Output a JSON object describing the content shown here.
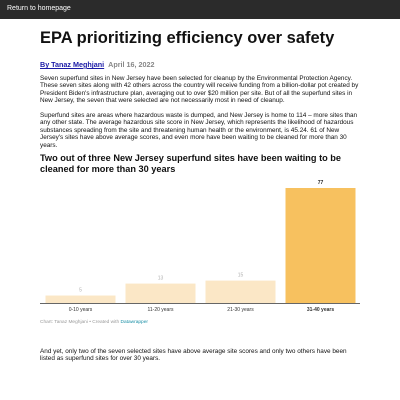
{
  "nav": {
    "home_link": "Return to homepage"
  },
  "article": {
    "title": "EPA prioritizing efficiency over safety",
    "author": "By Tanaz Meghjani",
    "date": "April 16, 2022",
    "paragraphs": [
      "Seven superfund sites in New Jersey have been selected for cleanup by the Environmental Protection Agency. These seven sites along with 42 others across the country will receive funding from a billion-dollar pot created by President Biden's infrastructure plan, averaging out to over $20 million per site. But of all the superfund sites in New Jersey, the seven that were selected are not necessarily most in need of cleanup.",
      "Superfund sites are areas where hazardous waste is dumped, and New Jersey is home to 114 – more sites than any other state. The average hazardous site score in New Jersey, which represents the likelihood of hazardous substances spreading from the site and threatening human health or the environment, is 45.24. 61 of New Jersey's sites have above average scores, and even more have been waiting to be cleaned for more than 30 years.",
      "And yet, only two of the seven selected sites have above average site scores and only two others have been listed as superfund sites for over 30 years."
    ],
    "chart_heading": "Two out of three New Jersey superfund sites have been waiting to be cleaned for more than 30 years",
    "credit_prefix": "Chart: Tanaz Meghjani • Created with ",
    "credit_link": "Datawrapper"
  },
  "colors": {
    "bar_light": "#fbe7c6",
    "bar_highlight": "#f7c15f",
    "label_light": "#b0b0b0",
    "label_highlight": "#222222",
    "axis": "#333333"
  },
  "chart_data": {
    "type": "bar",
    "categories": [
      "0-10 years",
      "11-20 years",
      "21-30 years",
      "31-40 years"
    ],
    "values": [
      5,
      13,
      15,
      77
    ],
    "highlight_index": 3,
    "title": "Two out of three New Jersey superfund sites have been waiting to be cleaned for more than 30 years",
    "ylim": [
      0,
      77
    ],
    "grid": false
  }
}
